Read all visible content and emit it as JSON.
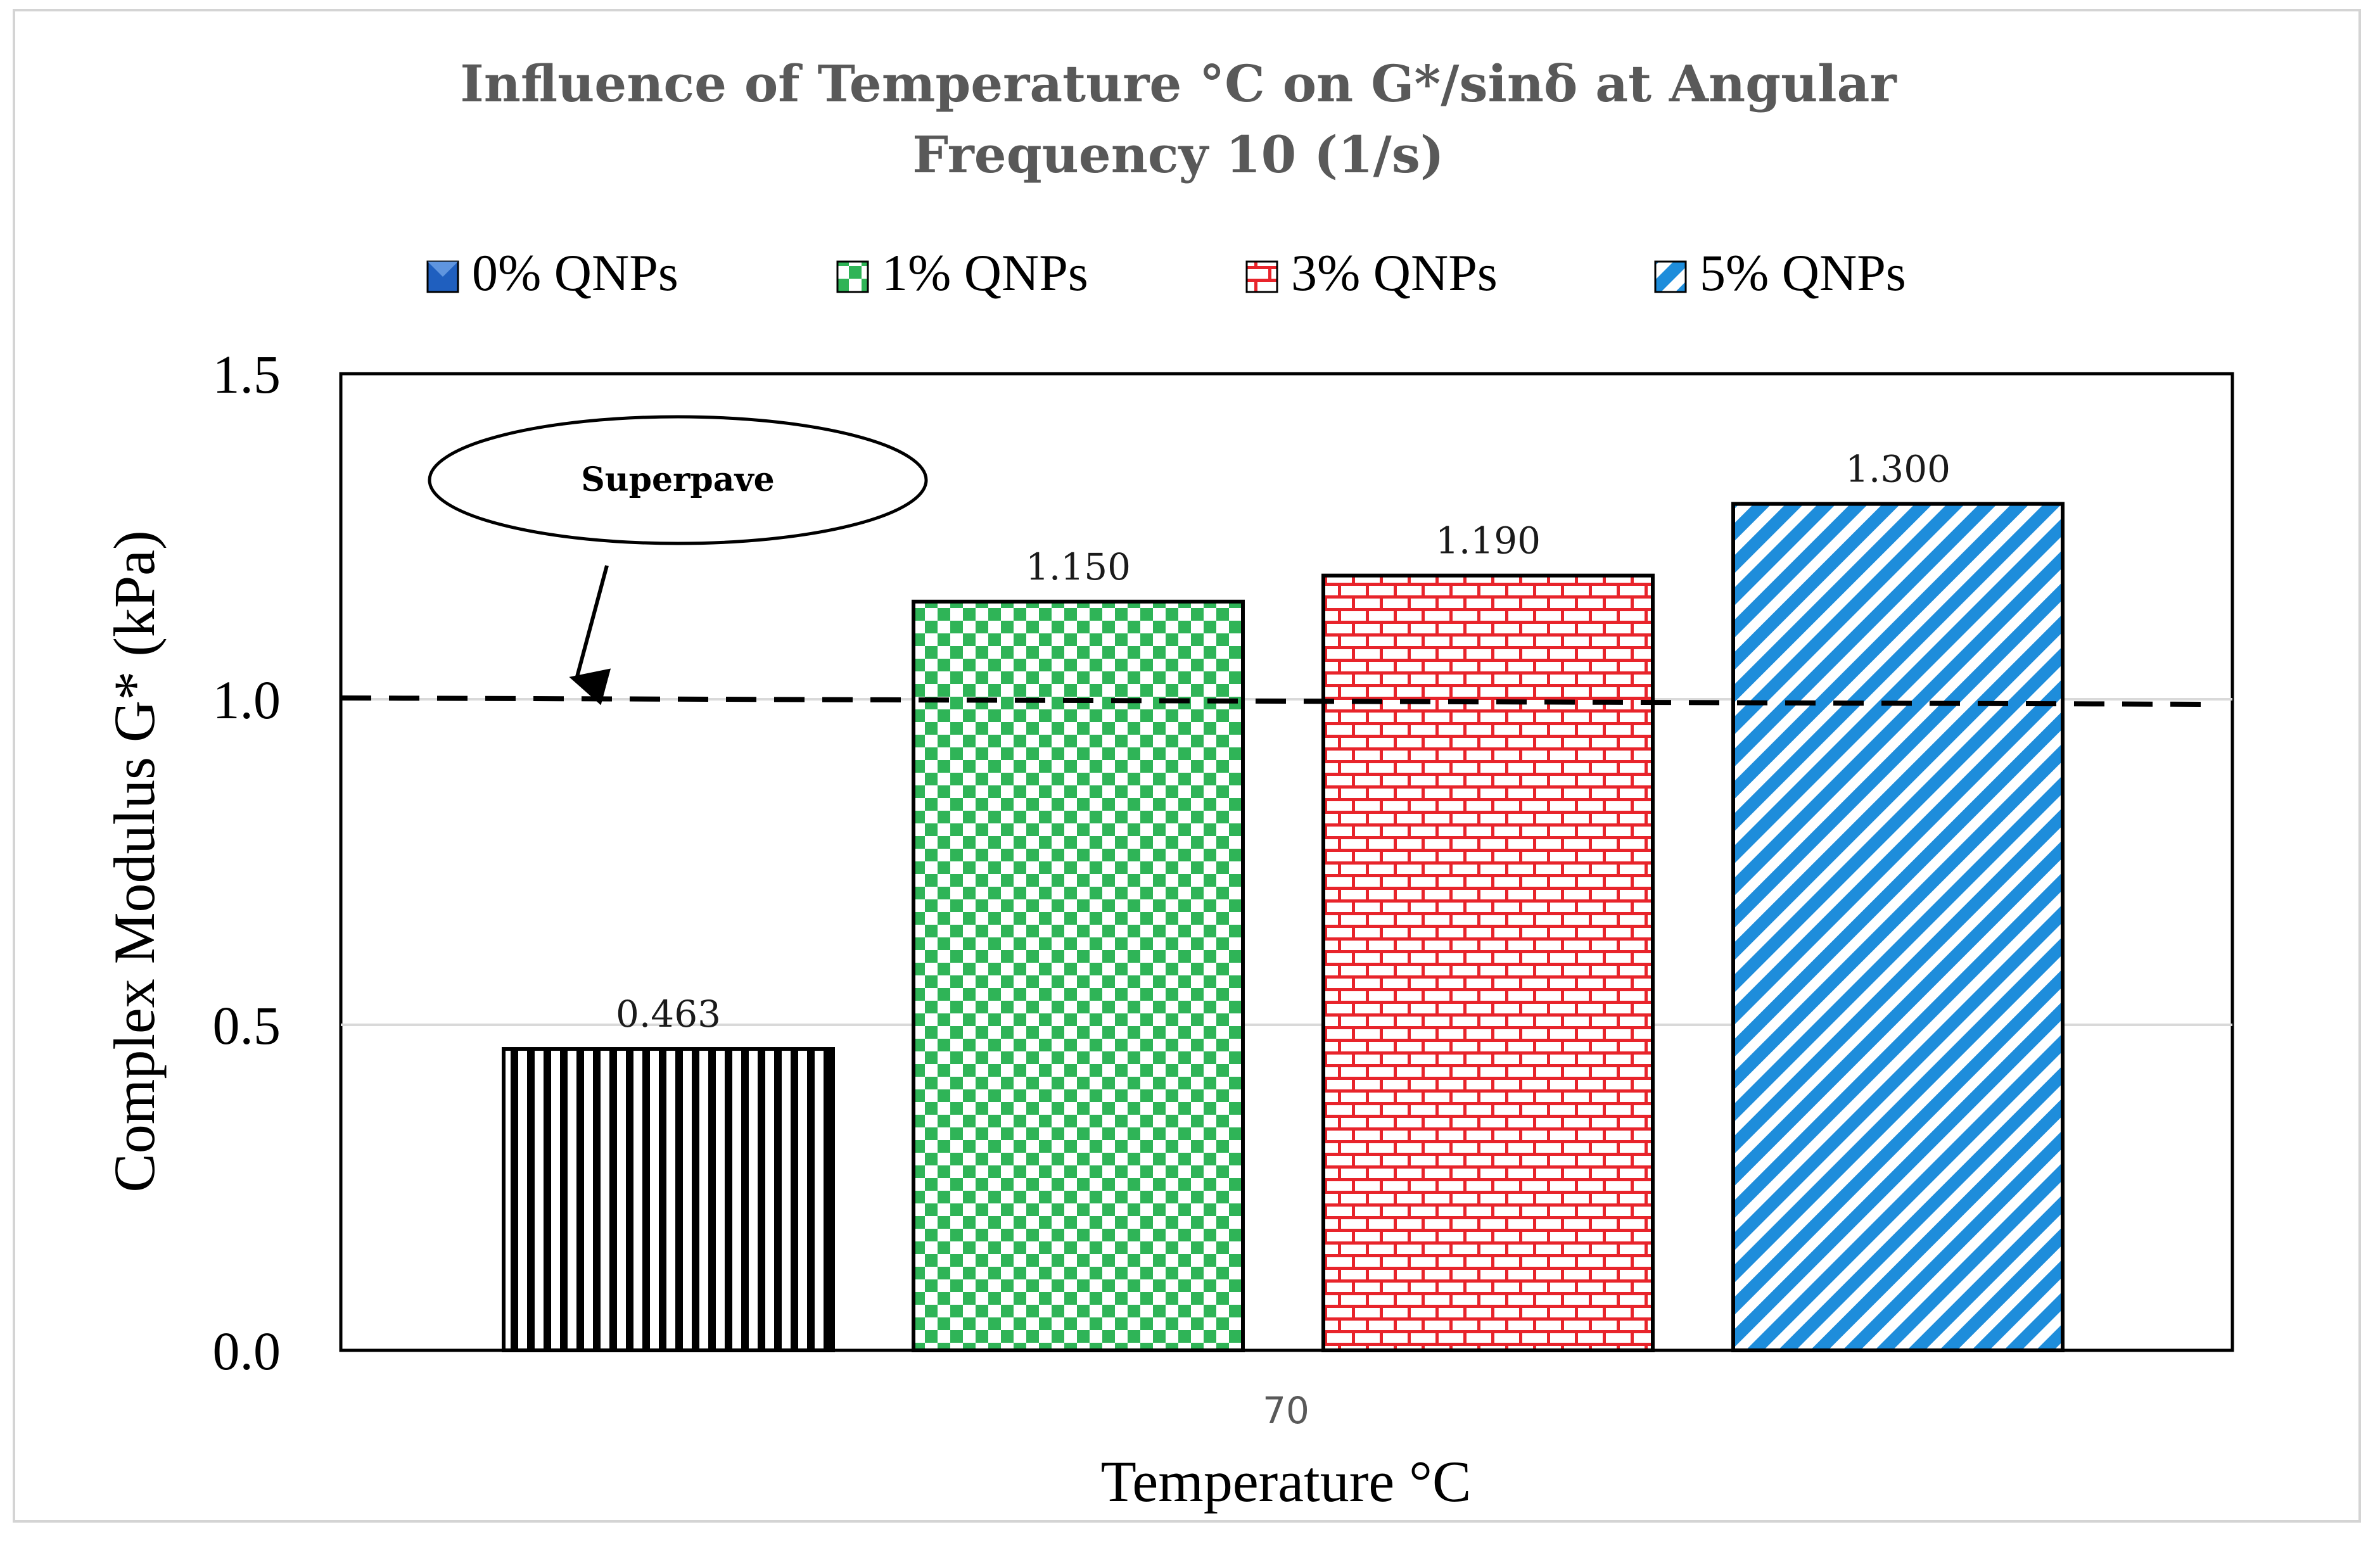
{
  "chart_data": {
    "type": "bar",
    "title_lines": [
      "Influence of Temperature °C on G*/sinδ at Angular",
      "Frequency 10 (1/s)"
    ],
    "xlabel": "Temperature °C",
    "ylabel": "Complex Modulus  G* (kPa)",
    "categories": [
      "70"
    ],
    "series": [
      {
        "name": "0% QNPs",
        "values": [
          0.463
        ],
        "label": "0.463",
        "pattern": "vertical-stripes",
        "color": "#000000",
        "legend_color": "#1f5fbf"
      },
      {
        "name": "1% QNPs",
        "values": [
          1.15
        ],
        "label": "1.150",
        "pattern": "checkerboard",
        "color": "#2fb457"
      },
      {
        "name": "3% QNPs",
        "values": [
          1.19
        ],
        "label": "1.190",
        "pattern": "brick",
        "color": "#e8242b"
      },
      {
        "name": "5% QNPs",
        "values": [
          1.3
        ],
        "label": "1.300",
        "pattern": "diagonal-stripes",
        "color": "#1e8ddb"
      }
    ],
    "ylim": [
      0,
      1.5
    ],
    "yticks": [
      "0.0",
      "0.5",
      "1.0",
      "1.5"
    ],
    "ytick_values": [
      0,
      0.5,
      1.0,
      1.5
    ],
    "grid": true,
    "legend_position": "top",
    "reference_line": {
      "value": 1.0,
      "style": "dashed",
      "label": "Superpave"
    }
  }
}
